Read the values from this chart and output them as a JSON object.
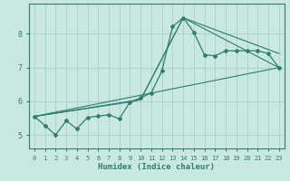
{
  "xlabel": "Humidex (Indice chaleur)",
  "background_color": "#c8e8e0",
  "line_color": "#2e7d6e",
  "xlim": [
    -0.5,
    23.5
  ],
  "ylim": [
    4.6,
    8.9
  ],
  "xticks": [
    0,
    1,
    2,
    3,
    4,
    5,
    6,
    7,
    8,
    9,
    10,
    11,
    12,
    13,
    14,
    15,
    16,
    17,
    18,
    19,
    20,
    21,
    22,
    23
  ],
  "yticks": [
    5,
    6,
    7,
    8
  ],
  "grid_color": "#aacece",
  "line1_x": [
    0,
    1,
    2,
    3,
    4,
    5,
    6,
    7,
    8,
    9,
    10,
    11,
    12,
    13,
    14,
    15,
    16,
    17,
    18,
    19,
    20,
    21,
    22,
    23
  ],
  "line1_y": [
    5.55,
    5.28,
    5.0,
    5.42,
    5.18,
    5.52,
    5.56,
    5.6,
    5.48,
    5.98,
    6.1,
    6.25,
    6.9,
    8.22,
    8.48,
    8.05,
    7.38,
    7.35,
    7.5,
    7.5,
    7.5,
    7.5,
    7.42,
    7.0
  ],
  "line2_x": [
    0,
    9,
    10,
    14,
    23
  ],
  "line2_y": [
    5.55,
    5.98,
    6.05,
    8.48,
    7.0
  ],
  "line3_x": [
    0,
    10,
    14,
    23
  ],
  "line3_y": [
    5.55,
    6.05,
    8.48,
    7.42
  ],
  "line4_x": [
    0,
    23
  ],
  "line4_y": [
    5.55,
    7.0
  ]
}
